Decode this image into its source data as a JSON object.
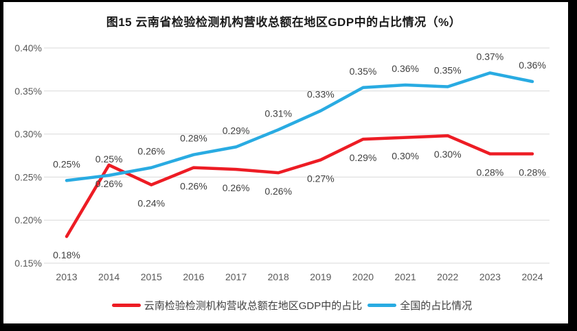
{
  "title": "图15  云南省检验检测机构营收总额在地区GDP中的占比情况（%）",
  "colors": {
    "yunnan": "#ED1C24",
    "national": "#29ABE2",
    "gridline": "#D9D9D9",
    "data_label": "#3f3f3f",
    "axis_label": "#595959",
    "frame": "#000000",
    "background": "#ffffff"
  },
  "chart_data": {
    "type": "line",
    "title": "图15  云南省检验检测机构营收总额在地区GDP中的占比情况（%）",
    "categories": [
      "2013",
      "2014",
      "2015",
      "2016",
      "2017",
      "2018",
      "2019",
      "2020",
      "2021",
      "2022",
      "2023",
      "2024"
    ],
    "series": [
      {
        "id": "yunnan",
        "name": "云南检验检测机构营收总额在地区GDP中的占比",
        "color": "#ED1C24",
        "values": [
          0.18,
          0.26,
          0.24,
          0.26,
          0.26,
          0.26,
          0.27,
          0.29,
          0.3,
          0.3,
          0.28,
          0.28
        ],
        "labels": [
          "0.18%",
          "0.26%",
          "0.24%",
          "0.26%",
          "0.26%",
          "0.26%",
          "0.27%",
          "0.29%",
          "0.30%",
          "0.30%",
          "0.28%",
          "0.28%"
        ],
        "plot_values": [
          0.181,
          0.264,
          0.241,
          0.261,
          0.259,
          0.255,
          0.27,
          0.294,
          0.296,
          0.298,
          0.277,
          0.277
        ],
        "label_side": "below"
      },
      {
        "id": "national",
        "name": "全国的占比情况",
        "color": "#29ABE2",
        "values": [
          0.25,
          0.25,
          0.26,
          0.28,
          0.29,
          0.31,
          0.33,
          0.35,
          0.36,
          0.35,
          0.37,
          0.36
        ],
        "labels": [
          "0.25%",
          "0.25%",
          "0.26%",
          "0.28%",
          "0.29%",
          "0.31%",
          "0.33%",
          "0.35%",
          "0.36%",
          "0.35%",
          "0.37%",
          "0.36%"
        ],
        "plot_values": [
          0.246,
          0.252,
          0.261,
          0.276,
          0.285,
          0.305,
          0.327,
          0.354,
          0.357,
          0.355,
          0.371,
          0.361
        ],
        "label_side": "above"
      }
    ],
    "xlabel": "",
    "ylabel": "",
    "ylim": [
      0.15,
      0.4
    ],
    "yticks": [
      {
        "value": 0.4,
        "label": "0.40%"
      },
      {
        "value": 0.35,
        "label": "0.35%"
      },
      {
        "value": 0.3,
        "label": "0.30%"
      },
      {
        "value": 0.25,
        "label": "0.25%"
      },
      {
        "value": 0.2,
        "label": "0.20%"
      },
      {
        "value": 0.15,
        "label": "0.15%"
      }
    ],
    "grid": true,
    "legend_position": "bottom"
  },
  "legend": {
    "items": [
      {
        "label": "云南检验检测机构营收总额在地区GDP中的占比",
        "series_id": "yunnan"
      },
      {
        "label": "全国的占比情况",
        "series_id": "national"
      }
    ]
  }
}
